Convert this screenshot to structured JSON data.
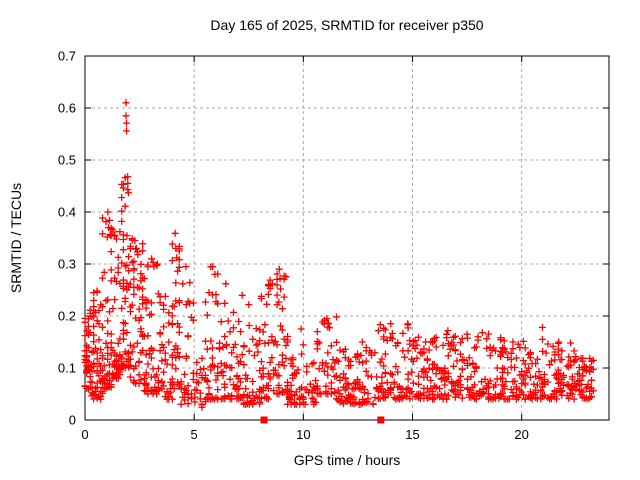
{
  "page": {
    "background": "#ffffff"
  },
  "chart_data": {
    "type": "scatter",
    "title": "Day 165 of 2025, SRMTID for receiver p350",
    "xlabel": "GPS time / hours",
    "ylabel": "SRMTID / TECUs",
    "xlim": [
      0,
      24
    ],
    "ylim": [
      0,
      0.7
    ],
    "xticks": {
      "values": [
        0,
        5,
        10,
        15,
        20
      ],
      "labels": [
        "0",
        "5",
        "10",
        "15",
        "20"
      ]
    },
    "yticks": {
      "values": [
        0,
        0.1,
        0.2,
        0.3,
        0.4,
        0.5,
        0.6,
        0.7
      ],
      "labels": [
        "0",
        "0.1",
        "0.2",
        "0.3",
        "0.4",
        "0.5",
        "0.6",
        "0.7"
      ]
    },
    "grid": {
      "show": true,
      "style": "dashed",
      "color": "#a8a8a8",
      "x_at": [
        5,
        10,
        15,
        20
      ],
      "y_at": [
        0.1,
        0.2,
        0.3,
        0.4,
        0.5,
        0.6
      ]
    },
    "axis_color": "#000000",
    "background": "#ffffff",
    "legend": "none",
    "series": [
      {
        "name": "SRMTID",
        "marker": "plus",
        "color": "#ff0000",
        "marker_size": 7,
        "seed": 165,
        "x_quantum": 0.08,
        "clusters_schema": [
          "x_start_hours",
          "x_end_hours",
          "count",
          "y_min_TECUs",
          "y_max_TECUs",
          "low_bias_exponent"
        ],
        "clusters": [
          [
            0.0,
            0.3,
            40,
            0.06,
            0.22,
            1.6
          ],
          [
            0.3,
            0.8,
            55,
            0.04,
            0.26,
            1.8
          ],
          [
            0.8,
            1.2,
            45,
            0.06,
            0.4,
            2.2
          ],
          [
            1.2,
            1.6,
            50,
            0.08,
            0.38,
            1.8
          ],
          [
            1.6,
            2.1,
            58,
            0.1,
            0.47,
            1.7
          ],
          [
            2.1,
            2.7,
            55,
            0.07,
            0.35,
            1.8
          ],
          [
            2.7,
            3.4,
            50,
            0.05,
            0.31,
            2.0
          ],
          [
            3.4,
            4.0,
            40,
            0.04,
            0.24,
            2.0
          ],
          [
            4.0,
            4.4,
            36,
            0.06,
            0.36,
            1.9
          ],
          [
            4.4,
            5.0,
            30,
            0.03,
            0.3,
            2.6
          ],
          [
            5.0,
            5.5,
            20,
            0.02,
            0.12,
            1.8
          ],
          [
            5.5,
            6.4,
            55,
            0.04,
            0.3,
            2.6
          ],
          [
            6.4,
            7.2,
            50,
            0.04,
            0.25,
            2.4
          ],
          [
            7.2,
            8.0,
            48,
            0.03,
            0.21,
            2.4
          ],
          [
            8.0,
            8.7,
            45,
            0.04,
            0.27,
            2.2
          ],
          [
            8.7,
            9.3,
            40,
            0.05,
            0.29,
            1.9
          ],
          [
            9.3,
            10.6,
            70,
            0.03,
            0.16,
            2.0
          ],
          [
            10.6,
            11.5,
            55,
            0.05,
            0.2,
            1.9
          ],
          [
            11.5,
            13.4,
            100,
            0.03,
            0.14,
            1.9
          ],
          [
            13.4,
            14.9,
            80,
            0.04,
            0.19,
            2.2
          ],
          [
            14.9,
            16.4,
            85,
            0.04,
            0.16,
            1.9
          ],
          [
            16.4,
            18.5,
            110,
            0.04,
            0.17,
            2.0
          ],
          [
            18.5,
            20.2,
            90,
            0.04,
            0.16,
            2.0
          ],
          [
            20.2,
            21.1,
            45,
            0.04,
            0.13,
            1.8
          ],
          [
            21.1,
            22.4,
            70,
            0.04,
            0.155,
            1.9
          ],
          [
            22.4,
            23.3,
            55,
            0.04,
            0.13,
            1.6
          ]
        ],
        "outlier_points": [
          [
            1.88,
            0.61
          ],
          [
            1.88,
            0.585
          ],
          [
            1.9,
            0.571
          ],
          [
            1.9,
            0.556
          ],
          [
            1.95,
            0.468
          ],
          [
            1.96,
            0.455
          ],
          [
            1.96,
            0.443
          ],
          [
            1.99,
            0.437
          ],
          [
            1.02,
            0.352
          ],
          [
            1.05,
            0.4
          ],
          [
            1.08,
            0.37
          ],
          [
            1.12,
            0.384
          ],
          [
            1.15,
            0.356
          ],
          [
            2.28,
            0.345
          ],
          [
            2.35,
            0.33
          ],
          [
            2.42,
            0.318
          ],
          [
            3.05,
            0.31
          ],
          [
            3.15,
            0.295
          ],
          [
            3.32,
            0.3
          ],
          [
            4.13,
            0.359
          ],
          [
            4.16,
            0.33
          ],
          [
            4.2,
            0.312
          ],
          [
            4.62,
            0.295
          ],
          [
            5.85,
            0.295
          ],
          [
            5.95,
            0.28
          ],
          [
            6.45,
            0.262
          ],
          [
            8.58,
            0.262
          ],
          [
            8.9,
            0.29
          ],
          [
            8.93,
            0.272
          ],
          [
            8.96,
            0.252
          ],
          [
            0.55,
            0.248
          ],
          [
            7.5,
            0.222
          ],
          [
            9.9,
            0.175
          ],
          [
            11.08,
            0.195
          ],
          [
            11.15,
            0.186
          ],
          [
            12.7,
            0.15
          ],
          [
            14.78,
            0.185
          ],
          [
            16.62,
            0.172
          ],
          [
            17.5,
            0.165
          ],
          [
            18.2,
            0.168
          ],
          [
            19.6,
            0.15
          ],
          [
            20.95,
            0.178
          ],
          [
            20.95,
            0.155
          ],
          [
            20.96,
            0.132
          ],
          [
            21.7,
            0.15
          ]
        ]
      },
      {
        "name": "axis-event-markers",
        "marker": "filled-square",
        "color": "#ff0000",
        "marker_size": 7,
        "points": [
          [
            8.2,
            0
          ],
          [
            13.55,
            0
          ]
        ]
      }
    ]
  }
}
